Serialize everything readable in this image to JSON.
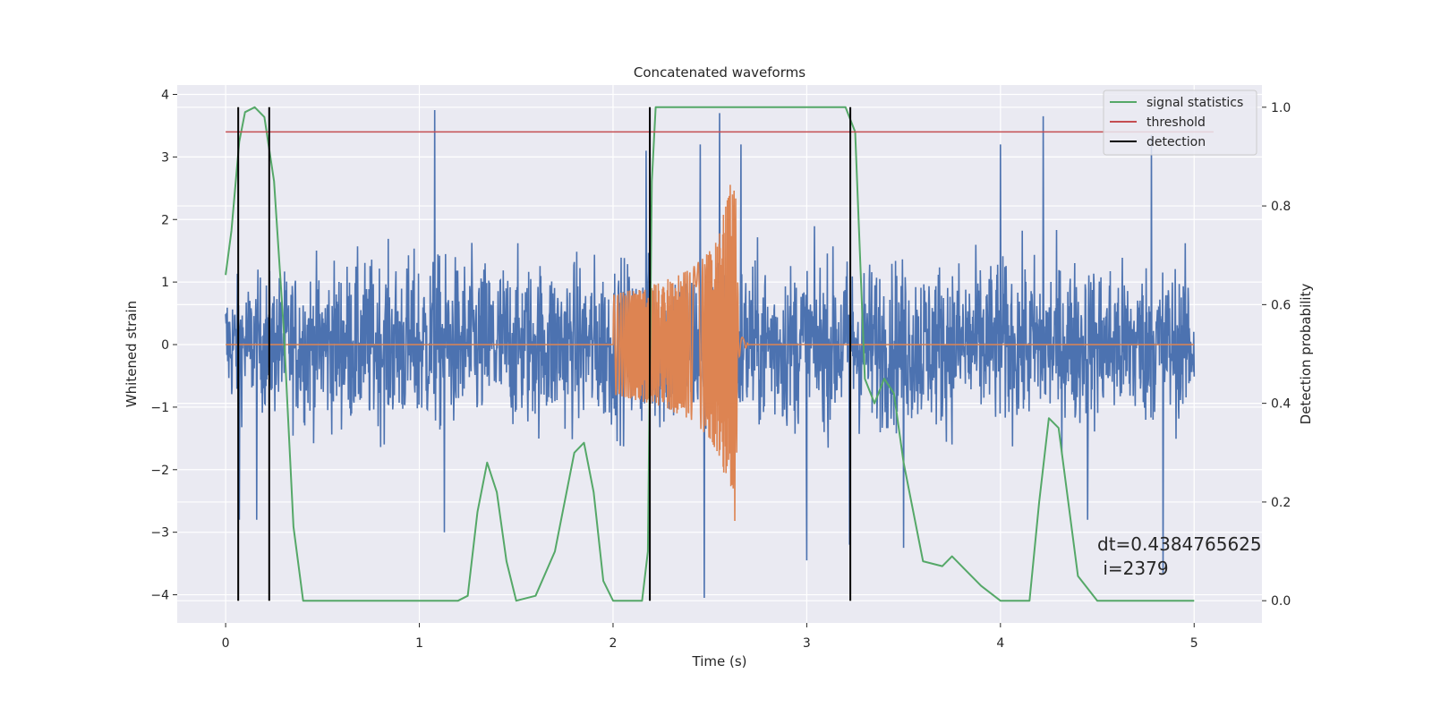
{
  "chart_data": {
    "type": "line",
    "title": "Concatenated waveforms",
    "xlabel": "Time (s)",
    "ylabel": "Whitened strain",
    "y2label": "Detection probability",
    "xlim": [
      -0.25,
      5.35
    ],
    "ylim": [
      -4.45,
      4.15
    ],
    "y2lim": [
      -0.045,
      1.045
    ],
    "xticks": [
      "0",
      "1",
      "2",
      "3",
      "4",
      "5"
    ],
    "yticks": [
      "−4",
      "−3",
      "−2",
      "−1",
      "0",
      "1",
      "2",
      "3",
      "4"
    ],
    "y2ticks": [
      "0.0",
      "0.2",
      "0.4",
      "0.6",
      "0.8",
      "1.0"
    ],
    "grid": true,
    "legend_position": "top-right",
    "colors": {
      "noise": "#4c72b0",
      "injection": "#dd8452",
      "signal_statistics": "#55a868",
      "threshold": "#c44e52",
      "detection": "#000000",
      "background": "#eaeaf2"
    },
    "series": [
      {
        "name": "",
        "role": "whitened noise strain",
        "x_range": [
          0,
          5
        ],
        "envelope": [
          [
            0.0,
            1.7
          ],
          [
            0.5,
            2.2
          ],
          [
            1.0,
            2.4
          ],
          [
            1.5,
            2.3
          ],
          [
            2.0,
            2.3
          ],
          [
            2.5,
            2.4
          ],
          [
            3.0,
            2.3
          ],
          [
            3.5,
            2.3
          ],
          [
            4.0,
            2.3
          ],
          [
            4.5,
            2.3
          ],
          [
            5.0,
            2.1
          ]
        ],
        "peaks": [
          [
            0.07,
            -2.8
          ],
          [
            0.16,
            -2.8
          ],
          [
            1.08,
            3.75
          ],
          [
            1.13,
            -3.0
          ],
          [
            2.17,
            3.1
          ],
          [
            2.45,
            3.2
          ],
          [
            2.47,
            -4.05
          ],
          [
            2.55,
            3.7
          ],
          [
            2.66,
            3.2
          ],
          [
            3.0,
            -3.45
          ],
          [
            3.22,
            -3.2
          ],
          [
            3.5,
            -3.25
          ],
          [
            4.0,
            3.2
          ],
          [
            4.22,
            3.65
          ],
          [
            4.45,
            -2.8
          ],
          [
            4.78,
            3.35
          ],
          [
            4.84,
            -3.65
          ]
        ]
      },
      {
        "name": "",
        "role": "injected waveform (chirp)",
        "x": [
          0.0,
          1.98,
          2.0,
          2.2,
          2.4,
          2.5,
          2.55,
          2.6,
          2.63,
          2.65,
          2.7,
          5.0
        ],
        "amplitude": [
          0.0,
          0.0,
          0.8,
          0.95,
          1.2,
          1.5,
          1.8,
          2.5,
          2.85,
          0.2,
          0.0,
          0.0
        ]
      },
      {
        "name": "signal statistics",
        "axis": "y2",
        "x": [
          0.0,
          0.03,
          0.07,
          0.1,
          0.15,
          0.2,
          0.25,
          0.3,
          0.35,
          0.4,
          1.2,
          1.25,
          1.3,
          1.35,
          1.4,
          1.45,
          1.5,
          1.6,
          1.7,
          1.8,
          1.85,
          1.9,
          1.95,
          2.0,
          2.15,
          2.18,
          2.2,
          2.22,
          2.25,
          3.2,
          3.25,
          3.3,
          3.35,
          3.4,
          3.45,
          3.5,
          3.6,
          3.7,
          3.75,
          3.8,
          3.9,
          4.0,
          4.15,
          4.2,
          4.25,
          4.3,
          4.35,
          4.4,
          4.5,
          5.0
        ],
        "y": [
          0.66,
          0.75,
          0.93,
          0.99,
          1.0,
          0.98,
          0.85,
          0.55,
          0.15,
          0.0,
          0.0,
          0.01,
          0.18,
          0.28,
          0.22,
          0.08,
          0.0,
          0.01,
          0.1,
          0.3,
          0.32,
          0.22,
          0.04,
          0.0,
          0.0,
          0.1,
          0.85,
          1.0,
          1.0,
          1.0,
          0.95,
          0.45,
          0.4,
          0.45,
          0.42,
          0.28,
          0.08,
          0.07,
          0.09,
          0.07,
          0.03,
          0.0,
          0.0,
          0.2,
          0.37,
          0.35,
          0.2,
          0.05,
          0.0,
          0.0
        ]
      },
      {
        "name": "threshold",
        "axis": "y2",
        "x": [
          0.0,
          5.1
        ],
        "y": [
          0.95,
          0.95
        ]
      },
      {
        "name": "detection",
        "axis": "y2",
        "x": [
          0.065,
          0.225,
          2.19,
          3.225
        ],
        "y_range": [
          0.0,
          1.0
        ]
      }
    ],
    "legend": [
      "signal statistics",
      "threshold",
      "detection"
    ],
    "annotations": [
      "dt=0.4384765625",
      " i=2379"
    ]
  }
}
